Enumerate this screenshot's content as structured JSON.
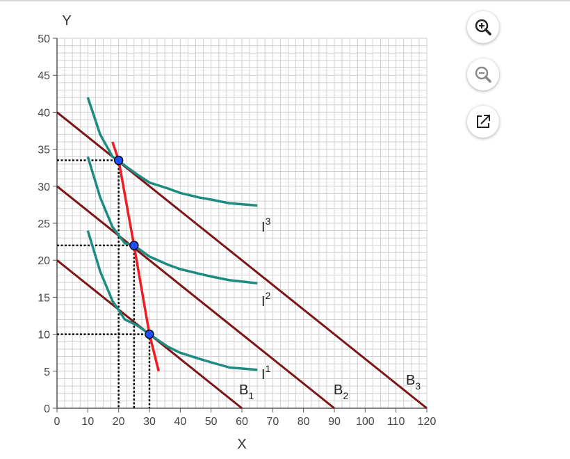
{
  "chart_data": {
    "type": "line",
    "xlabel": "X",
    "ylabel": "Y",
    "xlim": [
      0,
      120
    ],
    "ylim": [
      0,
      50
    ],
    "x_ticks": [
      0,
      10,
      20,
      30,
      40,
      50,
      60,
      70,
      80,
      90,
      100,
      110,
      120
    ],
    "y_ticks": [
      0,
      5,
      10,
      15,
      20,
      25,
      30,
      35,
      40,
      45,
      50
    ],
    "grid": true,
    "budget_lines": [
      {
        "name": "B",
        "sub": "1",
        "points": [
          [
            0,
            20
          ],
          [
            60,
            0
          ]
        ]
      },
      {
        "name": "B",
        "sub": "2",
        "points": [
          [
            0,
            30
          ],
          [
            90,
            0
          ]
        ]
      },
      {
        "name": "B",
        "sub": "3",
        "points": [
          [
            0,
            40
          ],
          [
            120,
            0
          ]
        ]
      }
    ],
    "indifference_curves": [
      {
        "name": "I",
        "sup": "1",
        "points": [
          [
            10,
            24
          ],
          [
            14,
            18.5
          ],
          [
            18,
            14.5
          ],
          [
            22,
            12
          ],
          [
            26,
            11.2
          ],
          [
            30,
            10
          ],
          [
            36,
            8.3
          ],
          [
            40,
            7.5
          ],
          [
            46,
            6.7
          ],
          [
            50,
            6.2
          ],
          [
            56,
            5.5
          ],
          [
            65,
            5.2
          ]
        ]
      },
      {
        "name": "I",
        "sup": "2",
        "points": [
          [
            10,
            34
          ],
          [
            14,
            28.5
          ],
          [
            18,
            24.5
          ],
          [
            22,
            22.3
          ],
          [
            25,
            22
          ],
          [
            30,
            20.5
          ],
          [
            36,
            19.4
          ],
          [
            40,
            18.8
          ],
          [
            46,
            18.2
          ],
          [
            50,
            17.8
          ],
          [
            56,
            17.3
          ],
          [
            65,
            16.9
          ]
        ]
      },
      {
        "name": "I",
        "sup": "3",
        "points": [
          [
            10,
            42
          ],
          [
            14,
            37
          ],
          [
            18,
            34
          ],
          [
            20,
            33.5
          ],
          [
            22,
            32.8
          ],
          [
            26,
            31.6
          ],
          [
            30,
            30.5
          ],
          [
            36,
            29.7
          ],
          [
            40,
            29.1
          ],
          [
            46,
            28.5
          ],
          [
            50,
            28.2
          ],
          [
            56,
            27.7
          ],
          [
            65,
            27.4
          ]
        ]
      }
    ],
    "income_consumption_curve": {
      "color": "#ee1c25",
      "points": [
        [
          18,
          36
        ],
        [
          20,
          33.5
        ],
        [
          25,
          22
        ],
        [
          30,
          10
        ],
        [
          33,
          5
        ]
      ]
    },
    "equilibria": [
      {
        "x": 20,
        "y": 33.5
      },
      {
        "x": 25,
        "y": 22
      },
      {
        "x": 30,
        "y": 10
      }
    ],
    "colors": {
      "budget": "#7d1416",
      "indifference": "#1c8b82",
      "icc": "#ee1c25",
      "point_fill": "#1f4cff",
      "grid": "#d0d0d0",
      "axis": "#555555"
    }
  },
  "toolbar": {
    "buttons": [
      {
        "name": "zoom-in-button",
        "icon": "zoom-in-icon"
      },
      {
        "name": "zoom-out-button",
        "icon": "zoom-out-icon"
      },
      {
        "name": "open-external-button",
        "icon": "open-external-icon"
      }
    ]
  }
}
